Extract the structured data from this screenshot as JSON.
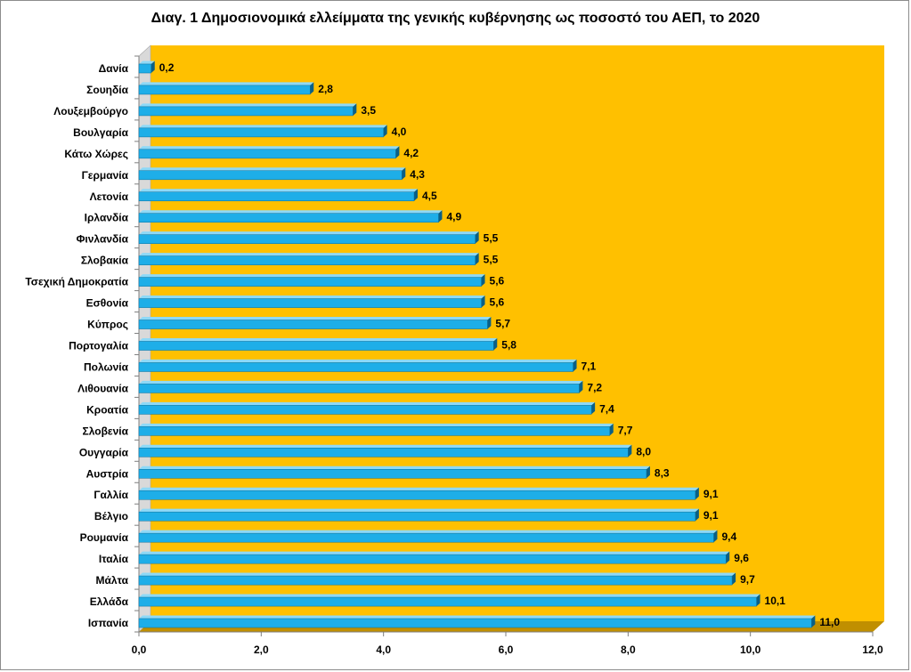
{
  "chart_data": {
    "type": "bar",
    "orientation": "horizontal",
    "title": "Διαγ. 1   Δημοσιονομικά ελλείμματα της γενικής κυβέρνησης ως ποσοστό του ΑΕΠ, το 2020",
    "categories": [
      "Δανία",
      "Σουηδία",
      "Λουξεμβούργο",
      "Βουλγαρία",
      "Κάτω Χώρες",
      "Γερμανία",
      "Λετονία",
      "Ιρλανδία",
      "Φινλανδία",
      "Σλοβακία",
      "Τσεχική Δημοκρατία",
      "Εσθονία",
      "Κύπρος",
      "Πορτογαλία",
      "Πολωνία",
      "Λιθουανία",
      "Κροατία",
      "Σλοβενία",
      "Ουγγαρία",
      "Αυστρία",
      "Γαλλία",
      "Βέλγιο",
      "Ρουμανία",
      "Ιταλία",
      "Μάλτα",
      "Ελλάδα",
      "Ισπανία"
    ],
    "values": [
      0.2,
      2.8,
      3.5,
      4.0,
      4.2,
      4.3,
      4.5,
      4.9,
      5.5,
      5.5,
      5.6,
      5.6,
      5.7,
      5.8,
      7.1,
      7.2,
      7.4,
      7.7,
      8.0,
      8.3,
      9.1,
      9.1,
      9.4,
      9.6,
      9.7,
      10.1,
      11.0
    ],
    "value_labels": [
      "0,2",
      "2,8",
      "3,5",
      "4,0",
      "4,2",
      "4,3",
      "4,5",
      "4,9",
      "5,5",
      "5,5",
      "5,6",
      "5,6",
      "5,7",
      "5,8",
      "7,1",
      "7,2",
      "7,4",
      "7,7",
      "8,0",
      "8,3",
      "9,1",
      "9,1",
      "9,4",
      "9,6",
      "9,7",
      "10,1",
      "11,0"
    ],
    "x_ticks": [
      0,
      2,
      4,
      6,
      8,
      10,
      12
    ],
    "x_tick_labels": [
      "0,0",
      "2,0",
      "4,0",
      "6,0",
      "8,0",
      "10,0",
      "12,0"
    ],
    "xlim": [
      0,
      12
    ],
    "grid": false,
    "legend": "none",
    "colors": {
      "bar": "#1eaee8",
      "bar_top": "#8ed9f7",
      "bar_side": "#0a5f86",
      "plot_background": "#ffc000",
      "floor": "#c08f00",
      "wall": "#d9d9d9"
    }
  }
}
